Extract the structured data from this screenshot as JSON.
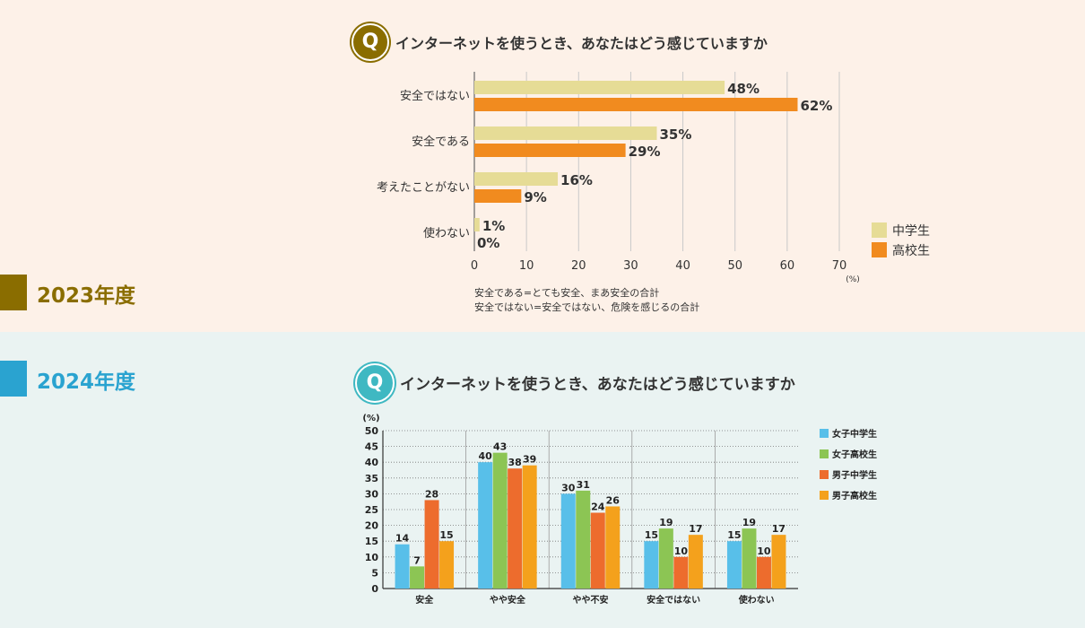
{
  "section_2023": {
    "year_label": "2023年度",
    "marker_color": "#8a6d00",
    "question": "インターネットを使うとき、あなたはどう感じていますか",
    "notes": [
      "安全である=とても安全、まあ安全の合計",
      "安全ではない=安全ではない、危険を感じるの合計"
    ]
  },
  "section_2024": {
    "year_label": "2024年度",
    "marker_color": "#2aa3d0",
    "question": "インターネットを使うとき、あなたはどう感じていますか"
  },
  "chart_data": [
    {
      "type": "bar",
      "orientation": "horizontal",
      "categories": [
        "安全ではない",
        "安全である",
        "考えたことがない",
        "使わない"
      ],
      "series": [
        {
          "name": "中学生",
          "values": [
            48,
            35,
            16,
            1
          ],
          "color": "#e6dc96"
        },
        {
          "name": "高校生",
          "values": [
            62,
            29,
            9,
            0
          ],
          "color": "#f18b1f"
        }
      ],
      "value_suffix": "%",
      "xlim": [
        0,
        70
      ],
      "xticks": [
        "0",
        "10",
        "20",
        "30",
        "40",
        "50",
        "60",
        "70"
      ],
      "unit_label": "(%)",
      "grid": true,
      "legend": "right"
    },
    {
      "type": "bar",
      "orientation": "vertical",
      "categories": [
        "安全",
        "やや安全",
        "やや不安",
        "安全ではない",
        "使わない"
      ],
      "series": [
        {
          "name": "女子中学生",
          "values": [
            14,
            40,
            30,
            15,
            15
          ],
          "color": "#58bfe9"
        },
        {
          "name": "女子高校生",
          "values": [
            7,
            43,
            31,
            19,
            19
          ],
          "color": "#8cc554"
        },
        {
          "name": "男子中学生",
          "values": [
            28,
            38,
            24,
            10,
            10
          ],
          "color": "#ed6c2d"
        },
        {
          "name": "男子高校生",
          "values": [
            15,
            39,
            26,
            17,
            17
          ],
          "color": "#f4a11c"
        }
      ],
      "ylim": [
        0,
        50
      ],
      "yticks": [
        "0",
        "5",
        "10",
        "15",
        "20",
        "25",
        "30",
        "35",
        "40",
        "45",
        "50"
      ],
      "unit_label": "(%)",
      "grid": "dotted",
      "legend": "right"
    }
  ]
}
